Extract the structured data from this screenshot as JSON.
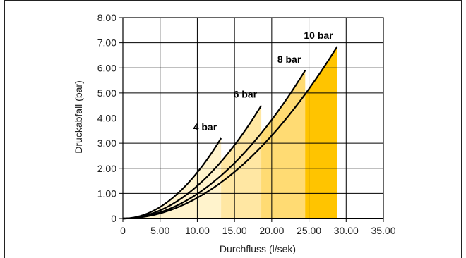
{
  "chart_data": {
    "type": "area",
    "xlabel": "Durchfluss (l/sek)",
    "ylabel": "Druckabfall (bar)",
    "xlim": [
      0,
      35
    ],
    "ylim": [
      0,
      8
    ],
    "x_ticks": [
      "0",
      "5.00",
      "10.00",
      "15.00",
      "20.00",
      "25.00",
      "30.00",
      "35.00"
    ],
    "y_ticks": [
      "0",
      "1.00",
      "2.00",
      "3.00",
      "4.00",
      "5.00",
      "6.00",
      "7.00",
      "8.00"
    ],
    "grid": true,
    "series": [
      {
        "name": "4 bar",
        "x_max": 13.2,
        "y_end": 3.2,
        "fill": "#fff3cc"
      },
      {
        "name": "6 bar",
        "x_max": 18.6,
        "y_end": 4.5,
        "fill": "#ffe7a3"
      },
      {
        "name": "8 bar",
        "x_max": 24.5,
        "y_end": 5.9,
        "fill": "#ffdb73"
      },
      {
        "name": "10 bar",
        "x_max": 28.8,
        "y_end": 6.85,
        "fill": "#ffc400"
      }
    ],
    "colors": {
      "curve": "#000000",
      "grid": "#000000",
      "axis": "#000000"
    }
  }
}
